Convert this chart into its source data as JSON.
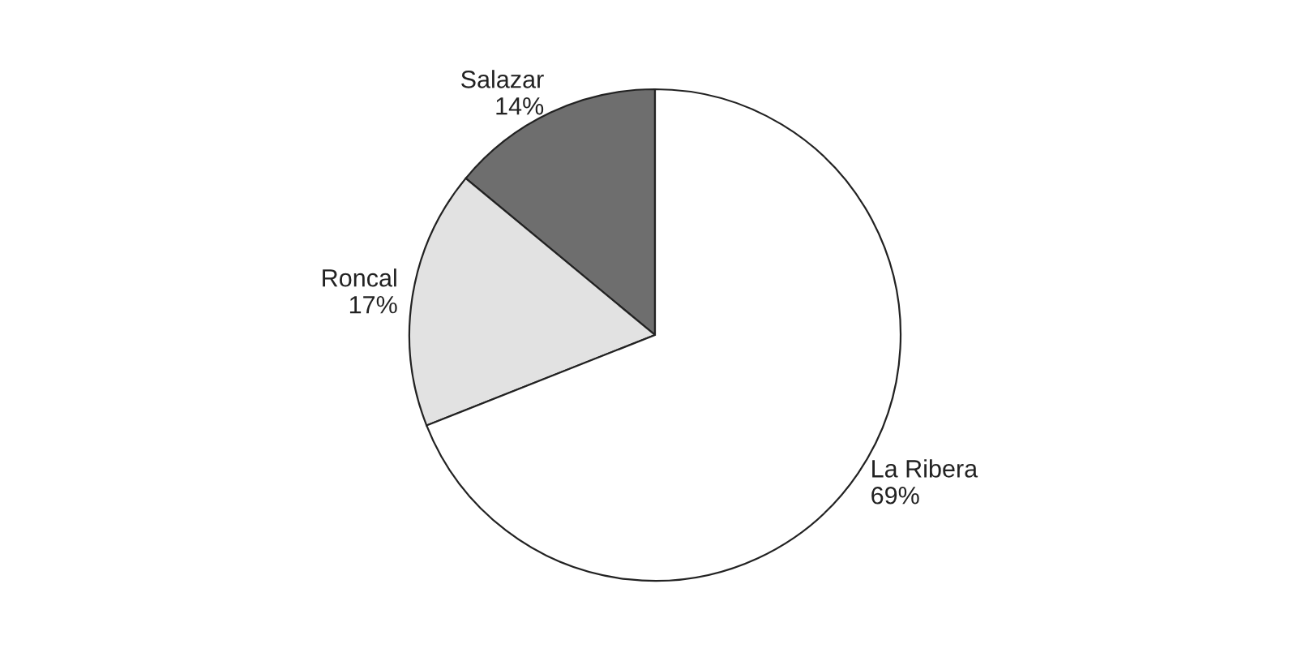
{
  "chart_data": {
    "type": "pie",
    "categories": [
      "Salazar",
      "Roncal",
      "La Ribera"
    ],
    "values": [
      14,
      17,
      69
    ],
    "value_labels": [
      "14%",
      "17%",
      "69%"
    ],
    "colors": [
      "#6e6e6e",
      "#e2e2e2",
      "#ffffff"
    ],
    "legend": false
  }
}
